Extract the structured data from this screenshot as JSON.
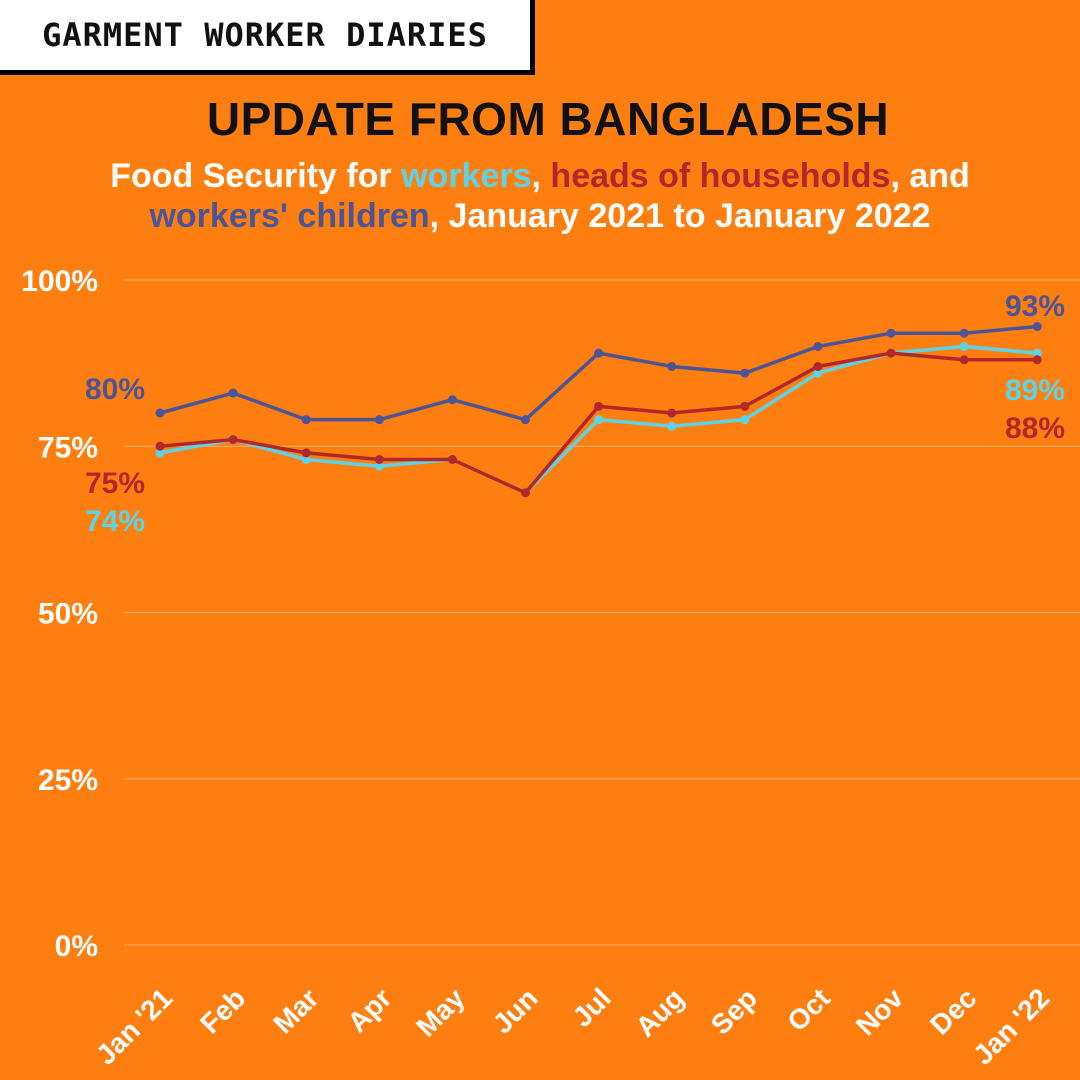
{
  "header": {
    "brand": "GARMENT WORKER DIARIES",
    "title": "UPDATE FROM BANGLADESH",
    "subtitle": {
      "part1": "Food Security for ",
      "workers": "workers",
      "comma1": ", ",
      "heads": "heads of households",
      "part2": ",  and",
      "children": "workers' children",
      "part3": ", January 2021 to January 2022"
    }
  },
  "colors": {
    "background": "#FF7E10",
    "workers": "#5FD3E6",
    "heads": "#B0282A",
    "children": "#4A5496",
    "gridline": "#FFB070"
  },
  "chart_data": {
    "type": "line",
    "categories": [
      "Jan '21",
      "Feb",
      "Mar",
      "Apr",
      "May",
      "Jun",
      "Jul",
      "Aug",
      "Sep",
      "Oct",
      "Nov",
      "Dec",
      "Jan '22"
    ],
    "ylim": [
      0,
      100
    ],
    "yticks": [
      "0%",
      "25%",
      "50%",
      "75%",
      "100%"
    ],
    "ytick_values": [
      0,
      25,
      50,
      75,
      100
    ],
    "grid": true,
    "series": [
      {
        "key": "children",
        "name": "workers' children",
        "color": "#4A5496",
        "values": [
          80,
          83,
          79,
          79,
          82,
          79,
          89,
          87,
          86,
          90,
          92,
          92,
          93
        ],
        "start_label": "80%",
        "end_label": "93%"
      },
      {
        "key": "heads",
        "name": "heads of households",
        "color": "#B0282A",
        "values": [
          75,
          76,
          74,
          73,
          73,
          68,
          81,
          80,
          81,
          87,
          89,
          88,
          88
        ],
        "start_label": "75%",
        "end_label": "88%"
      },
      {
        "key": "workers",
        "name": "workers",
        "color": "#5FD3E6",
        "values": [
          74,
          76,
          73,
          72,
          73,
          68,
          79,
          78,
          79,
          86,
          89,
          90,
          89
        ],
        "start_label": "74%",
        "end_label": "89%"
      }
    ]
  }
}
